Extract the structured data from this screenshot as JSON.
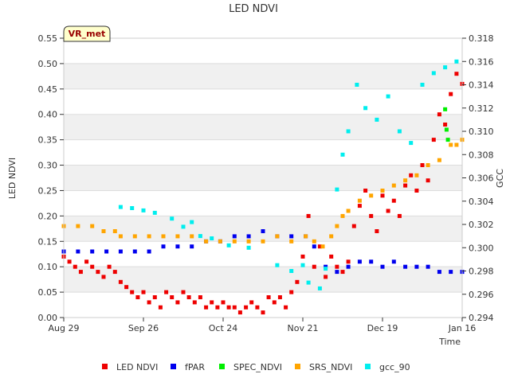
{
  "chart_data": {
    "type": "scatter",
    "title": "LED NDVI",
    "xlabel": "Time",
    "ylabel": "LED NDVI",
    "y2label": "GCC",
    "badge": "VR_met",
    "x_ticks": [
      "Aug 29",
      "Sep 26",
      "Oct 24",
      "Nov 21",
      "Dec 19",
      "Jan 16"
    ],
    "xlim_days": [
      0,
      140
    ],
    "ylim": [
      0,
      0.55
    ],
    "y_ticks": [
      0.0,
      0.05,
      0.1,
      0.15,
      0.2,
      0.25,
      0.3,
      0.35,
      0.4,
      0.45,
      0.5,
      0.55
    ],
    "y2lim": [
      0.294,
      0.318
    ],
    "y2_ticks": [
      0.294,
      0.296,
      0.298,
      0.3,
      0.302,
      0.304,
      0.306,
      0.308,
      0.31,
      0.312,
      0.314,
      0.316,
      0.318
    ],
    "grid_bands": true,
    "legend_position": "bottom",
    "series": [
      {
        "name": "LED NDVI",
        "color": "#ee0000",
        "axis": "left",
        "points": [
          [
            0,
            0.12
          ],
          [
            2,
            0.11
          ],
          [
            4,
            0.1
          ],
          [
            6,
            0.09
          ],
          [
            8,
            0.11
          ],
          [
            10,
            0.1
          ],
          [
            12,
            0.09
          ],
          [
            14,
            0.08
          ],
          [
            16,
            0.1
          ],
          [
            18,
            0.09
          ],
          [
            20,
            0.07
          ],
          [
            22,
            0.06
          ],
          [
            24,
            0.05
          ],
          [
            26,
            0.04
          ],
          [
            28,
            0.05
          ],
          [
            30,
            0.03
          ],
          [
            32,
            0.04
          ],
          [
            34,
            0.02
          ],
          [
            36,
            0.05
          ],
          [
            38,
            0.04
          ],
          [
            40,
            0.03
          ],
          [
            42,
            0.05
          ],
          [
            44,
            0.04
          ],
          [
            46,
            0.03
          ],
          [
            48,
            0.04
          ],
          [
            50,
            0.02
          ],
          [
            52,
            0.03
          ],
          [
            54,
            0.02
          ],
          [
            56,
            0.03
          ],
          [
            58,
            0.02
          ],
          [
            60,
            0.02
          ],
          [
            62,
            0.01
          ],
          [
            64,
            0.02
          ],
          [
            66,
            0.03
          ],
          [
            68,
            0.02
          ],
          [
            70,
            0.01
          ],
          [
            72,
            0.04
          ],
          [
            74,
            0.03
          ],
          [
            76,
            0.04
          ],
          [
            78,
            0.02
          ],
          [
            80,
            0.05
          ],
          [
            82,
            0.07
          ],
          [
            84,
            0.12
          ],
          [
            86,
            0.2
          ],
          [
            88,
            0.1
          ],
          [
            90,
            0.14
          ],
          [
            92,
            0.08
          ],
          [
            94,
            0.12
          ],
          [
            96,
            0.1
          ],
          [
            98,
            0.09
          ],
          [
            100,
            0.11
          ],
          [
            102,
            0.18
          ],
          [
            104,
            0.22
          ],
          [
            106,
            0.25
          ],
          [
            108,
            0.2
          ],
          [
            110,
            0.17
          ],
          [
            112,
            0.24
          ],
          [
            114,
            0.21
          ],
          [
            116,
            0.23
          ],
          [
            118,
            0.2
          ],
          [
            120,
            0.26
          ],
          [
            122,
            0.28
          ],
          [
            124,
            0.25
          ],
          [
            126,
            0.3
          ],
          [
            128,
            0.27
          ],
          [
            130,
            0.35
          ],
          [
            132,
            0.4
          ],
          [
            134,
            0.38
          ],
          [
            136,
            0.44
          ],
          [
            138,
            0.48
          ],
          [
            140,
            0.46
          ]
        ]
      },
      {
        "name": "fPAR",
        "color": "#0000ee",
        "axis": "left",
        "points": [
          [
            0,
            0.13
          ],
          [
            5,
            0.13
          ],
          [
            10,
            0.13
          ],
          [
            15,
            0.13
          ],
          [
            20,
            0.13
          ],
          [
            25,
            0.13
          ],
          [
            30,
            0.13
          ],
          [
            35,
            0.14
          ],
          [
            40,
            0.14
          ],
          [
            45,
            0.14
          ],
          [
            50,
            0.15
          ],
          [
            55,
            0.15
          ],
          [
            60,
            0.16
          ],
          [
            65,
            0.16
          ],
          [
            70,
            0.17
          ],
          [
            75,
            0.16
          ],
          [
            80,
            0.16
          ],
          [
            85,
            0.16
          ],
          [
            88,
            0.14
          ],
          [
            92,
            0.1
          ],
          [
            96,
            0.09
          ],
          [
            100,
            0.1
          ],
          [
            104,
            0.11
          ],
          [
            108,
            0.11
          ],
          [
            112,
            0.1
          ],
          [
            116,
            0.11
          ],
          [
            120,
            0.1
          ],
          [
            124,
            0.1
          ],
          [
            128,
            0.1
          ],
          [
            132,
            0.09
          ],
          [
            136,
            0.09
          ],
          [
            140,
            0.09
          ]
        ]
      },
      {
        "name": "SPEC_NDVI",
        "color": "#00ee00",
        "axis": "left",
        "points": [
          [
            134,
            0.41
          ],
          [
            134.5,
            0.37
          ],
          [
            135,
            0.35
          ]
        ]
      },
      {
        "name": "SRS_NDVI",
        "color": "#ffa500",
        "axis": "left",
        "points": [
          [
            0,
            0.18
          ],
          [
            5,
            0.18
          ],
          [
            10,
            0.18
          ],
          [
            14,
            0.17
          ],
          [
            18,
            0.17
          ],
          [
            20,
            0.16
          ],
          [
            25,
            0.16
          ],
          [
            30,
            0.16
          ],
          [
            35,
            0.16
          ],
          [
            40,
            0.16
          ],
          [
            45,
            0.16
          ],
          [
            50,
            0.15
          ],
          [
            55,
            0.15
          ],
          [
            60,
            0.15
          ],
          [
            65,
            0.15
          ],
          [
            70,
            0.15
          ],
          [
            75,
            0.16
          ],
          [
            80,
            0.15
          ],
          [
            85,
            0.16
          ],
          [
            88,
            0.15
          ],
          [
            91,
            0.14
          ],
          [
            94,
            0.16
          ],
          [
            96,
            0.18
          ],
          [
            98,
            0.2
          ],
          [
            100,
            0.21
          ],
          [
            104,
            0.23
          ],
          [
            108,
            0.24
          ],
          [
            112,
            0.25
          ],
          [
            116,
            0.26
          ],
          [
            120,
            0.27
          ],
          [
            124,
            0.28
          ],
          [
            128,
            0.3
          ],
          [
            132,
            0.31
          ],
          [
            136,
            0.34
          ],
          [
            138,
            0.34
          ],
          [
            140,
            0.35
          ]
        ]
      },
      {
        "name": "gcc_90",
        "color": "#00eeee",
        "axis": "right",
        "points": [
          [
            20,
            0.3035
          ],
          [
            24,
            0.3034
          ],
          [
            28,
            0.3032
          ],
          [
            32,
            0.303
          ],
          [
            38,
            0.3025
          ],
          [
            42,
            0.3018
          ],
          [
            45,
            0.3022
          ],
          [
            48,
            0.301
          ],
          [
            52,
            0.3008
          ],
          [
            58,
            0.3002
          ],
          [
            65,
            0.3
          ],
          [
            75,
            0.2985
          ],
          [
            80,
            0.298
          ],
          [
            84,
            0.2985
          ],
          [
            86,
            0.297
          ],
          [
            90,
            0.2965
          ],
          [
            92,
            0.2982
          ],
          [
            96,
            0.305
          ],
          [
            98,
            0.308
          ],
          [
            100,
            0.31
          ],
          [
            103,
            0.314
          ],
          [
            106,
            0.312
          ],
          [
            110,
            0.311
          ],
          [
            114,
            0.313
          ],
          [
            118,
            0.31
          ],
          [
            122,
            0.309
          ],
          [
            126,
            0.314
          ],
          [
            130,
            0.315
          ],
          [
            134,
            0.3155
          ],
          [
            138,
            0.316
          ]
        ]
      }
    ]
  }
}
